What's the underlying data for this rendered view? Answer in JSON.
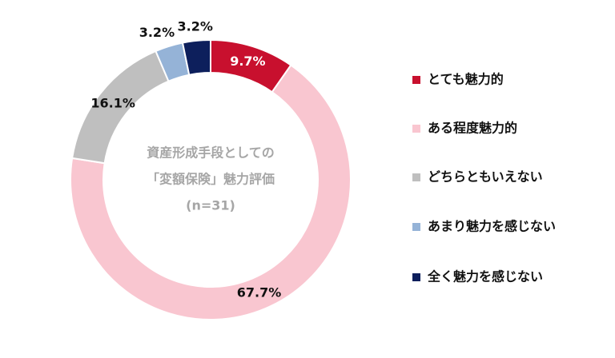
{
  "chart_data": {
    "type": "donut",
    "center_text": [
      "資産形成手段としての",
      "「変額保険」魅力評価",
      "(n=31)"
    ],
    "categories": [
      "とても魅力的",
      "ある程度魅力的",
      "どちらともいえない",
      "あまり魅力を感じない",
      "全く魅力を感じない"
    ],
    "values": [
      9.7,
      67.7,
      16.1,
      3.2,
      3.2
    ],
    "value_labels": [
      "9.7%",
      "67.7%",
      "16.1%",
      "3.2%",
      "3.2%"
    ],
    "colors": [
      "#c8102e",
      "#f9c6d0",
      "#bfbfbf",
      "#95b3d7",
      "#0d1f5c"
    ],
    "legend": "right"
  }
}
